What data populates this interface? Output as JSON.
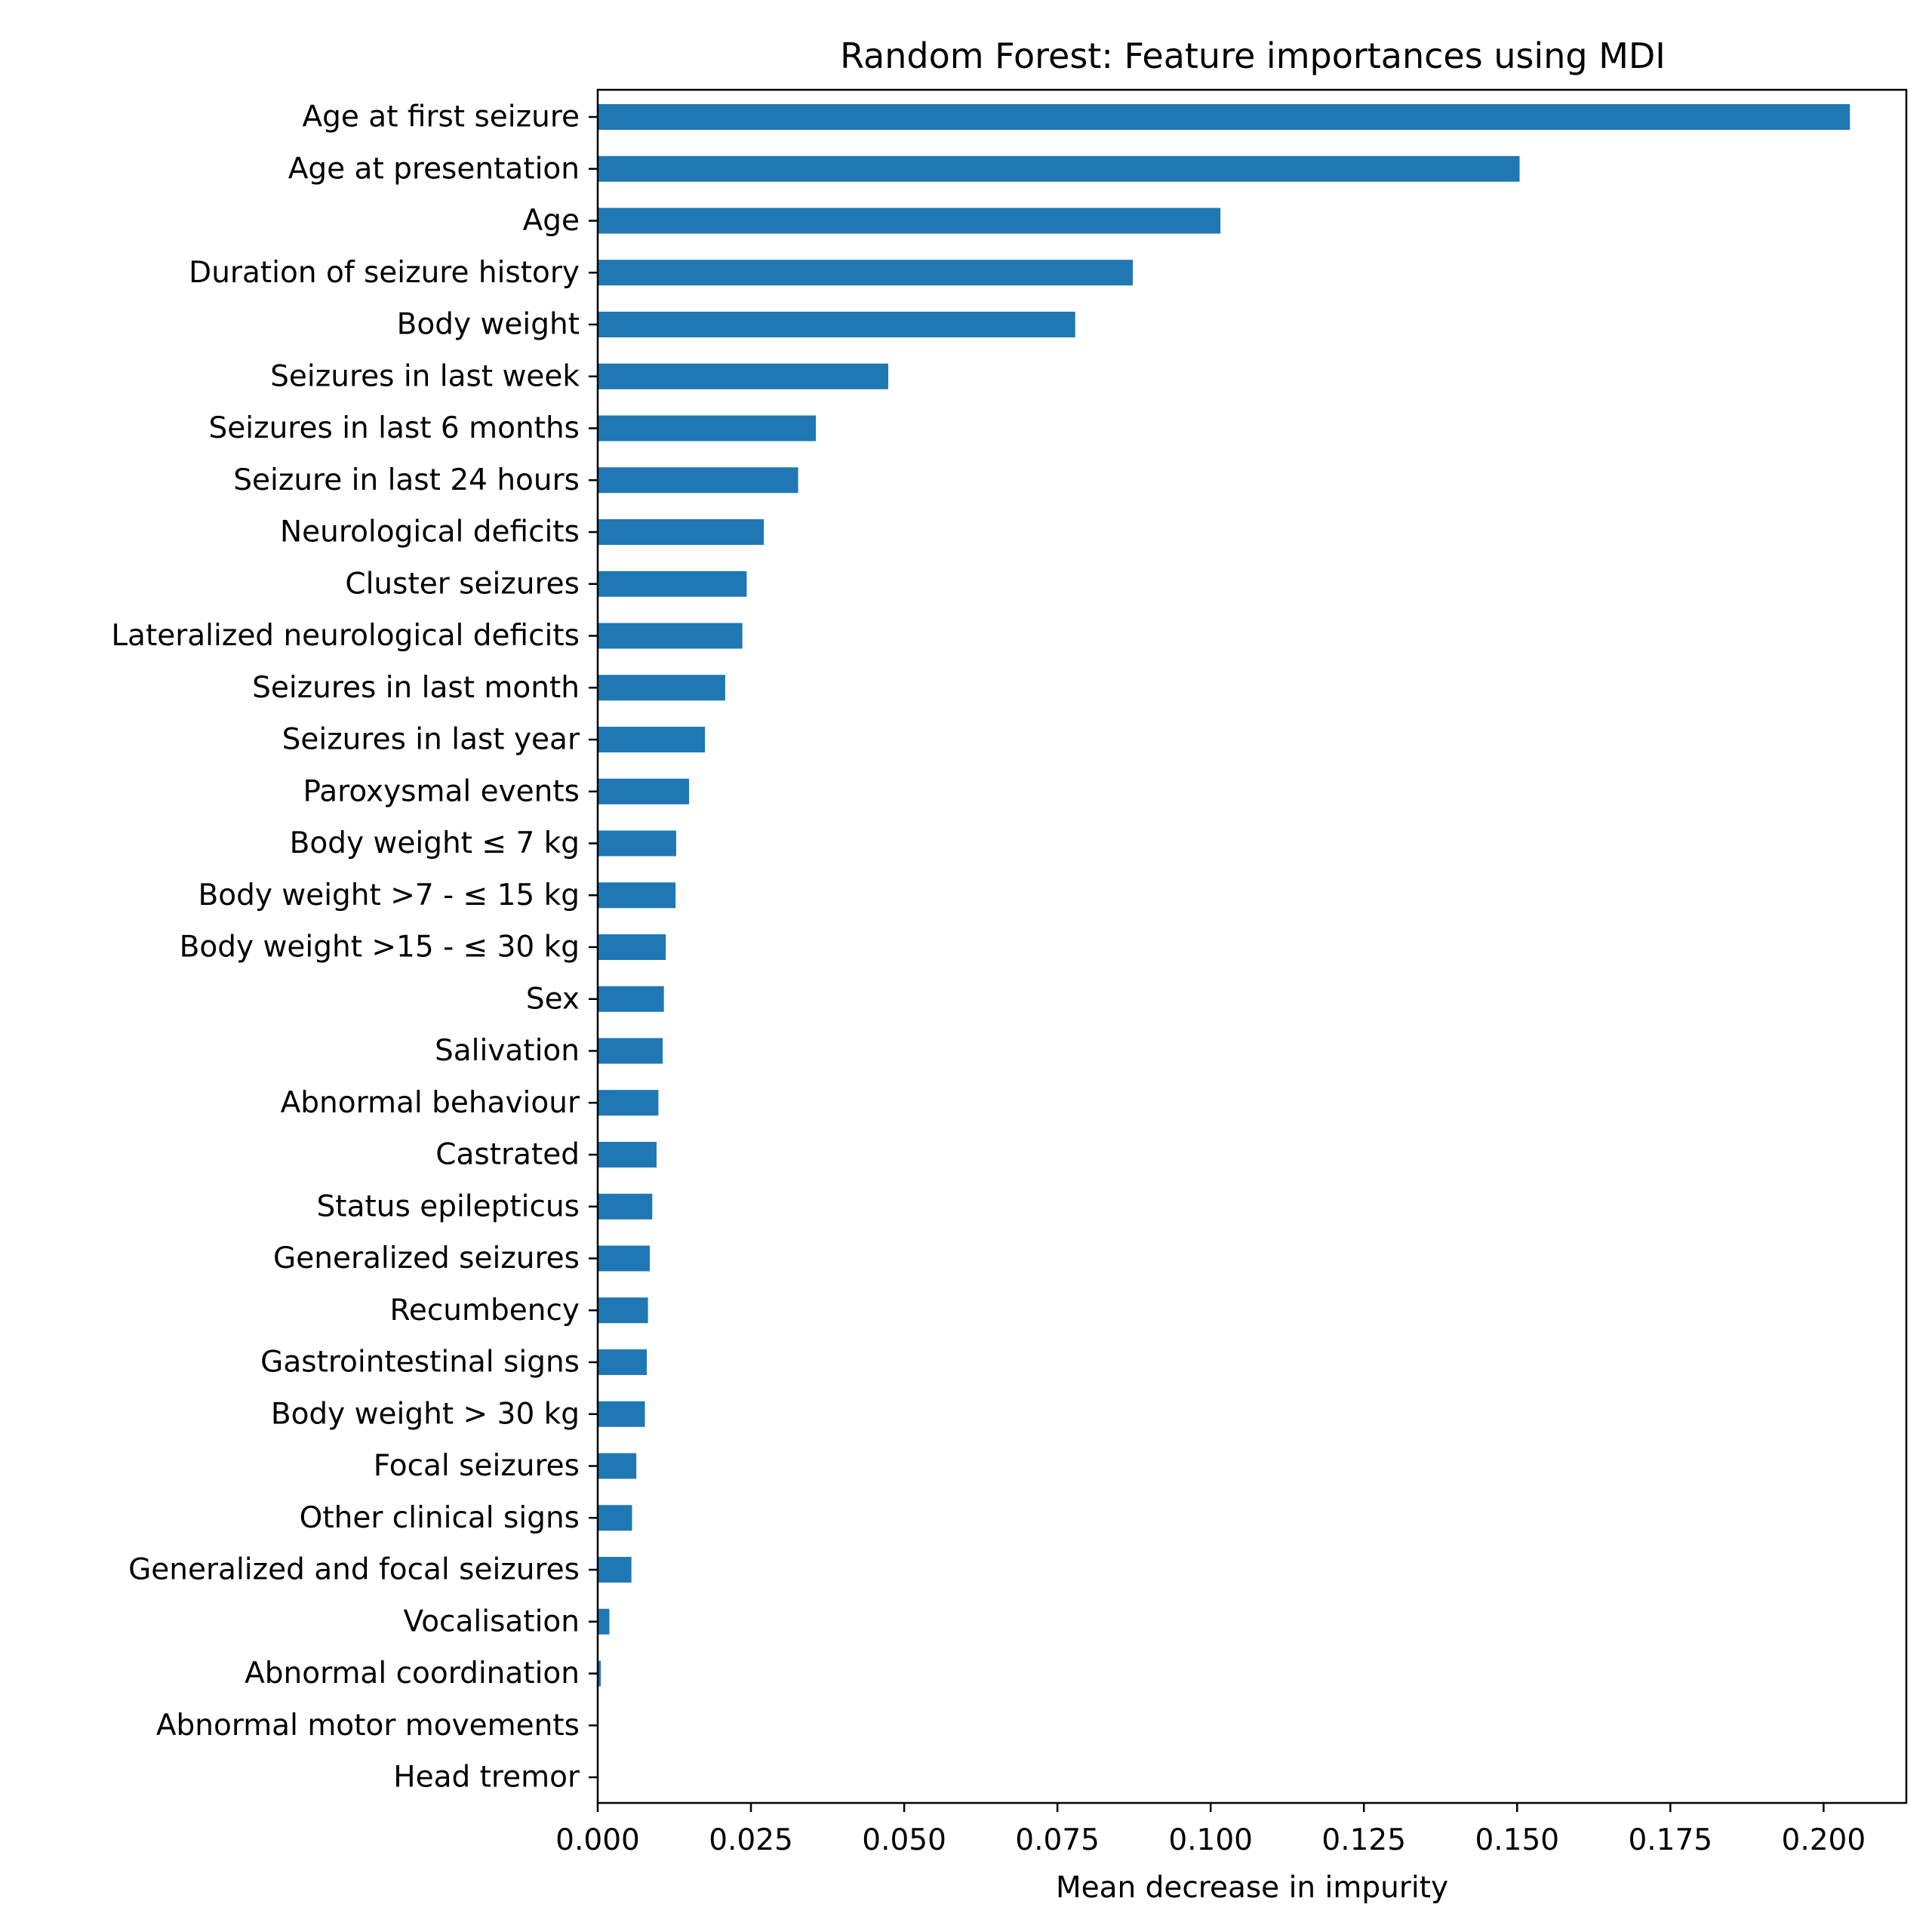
{
  "chart_data": {
    "type": "bar",
    "orientation": "horizontal",
    "title": "Random Forest: Feature importances using MDI",
    "xlabel": "Mean decrease in impurity",
    "ylabel": "",
    "xlim": [
      0,
      0.2135
    ],
    "grid": false,
    "bar_color": "#1f77b4",
    "xticks": [
      0.0,
      0.025,
      0.05,
      0.075,
      0.1,
      0.125,
      0.15,
      0.175,
      0.2
    ],
    "xtick_labels": [
      "0.000",
      "0.025",
      "0.050",
      "0.075",
      "0.100",
      "0.125",
      "0.150",
      "0.175",
      "0.200"
    ],
    "categories": [
      "Age at first seizure",
      "Age at presentation",
      "Age",
      "Duration of seizure history",
      "Body weight",
      "Seizures in last week",
      "Seizures in last 6 months",
      "Seizure in last 24 hours",
      "Neurological deficits",
      "Cluster seizures",
      "Lateralized neurological deficits",
      "Seizures in last month",
      "Seizures in last year",
      "Paroxysmal events",
      "Body weight ≤ 7 kg",
      "Body weight >7 - ≤ 15 kg",
      "Body weight >15 - ≤ 30 kg",
      "Sex",
      "Salivation",
      "Abnormal behaviour",
      "Castrated",
      "Status epilepticus",
      "Generalized seizures",
      "Recumbency",
      "Gastrointestinal signs",
      "Body weight > 30 kg",
      "Focal seizures",
      "Other clinical signs",
      "Generalized and focal seizures",
      "Vocalisation",
      "Abnormal coordination",
      "Abnormal motor movements",
      "Head tremor"
    ],
    "values": [
      0.2043,
      0.1504,
      0.1016,
      0.0873,
      0.0779,
      0.0474,
      0.0356,
      0.0327,
      0.0271,
      0.0243,
      0.0236,
      0.0208,
      0.0175,
      0.0149,
      0.0128,
      0.0127,
      0.0111,
      0.0108,
      0.0106,
      0.0099,
      0.0096,
      0.0089,
      0.0085,
      0.0082,
      0.008,
      0.0077,
      0.0063,
      0.0056,
      0.0055,
      0.0019,
      0.0005,
      0.0,
      0.0
    ]
  }
}
